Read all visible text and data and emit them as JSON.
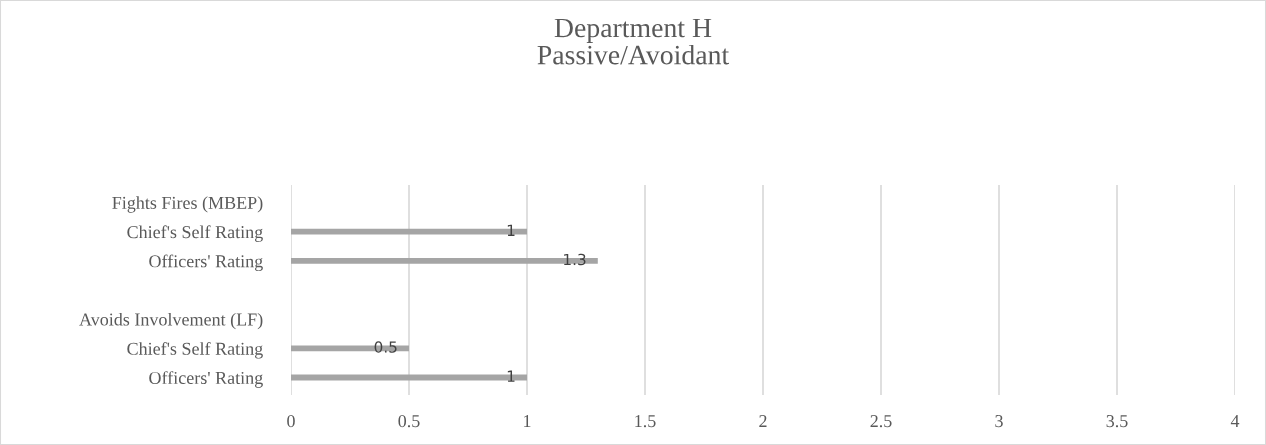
{
  "chart_data": {
    "type": "bar",
    "orientation": "horizontal",
    "title": "Department H\nPassive/Avoidant",
    "categories": [
      "Fights Fires (MBEP)",
      "Chief's Self Rating",
      "Officers' Rating",
      null,
      "Avoids Involvement (LF)",
      "Chief's Self Rating",
      "Officers' Rating"
    ],
    "values": [
      null,
      1,
      1.3,
      null,
      null,
      0.5,
      1
    ],
    "color": "#a5a5a5",
    "xlim": [
      0,
      4
    ],
    "xticks": [
      0,
      0.5,
      1,
      1.5,
      2,
      2.5,
      3,
      3.5,
      4
    ],
    "grid": "x",
    "data_labels": true,
    "legend": false
  }
}
